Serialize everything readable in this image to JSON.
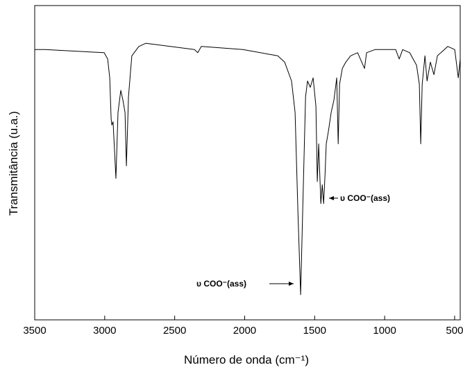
{
  "chart_data": {
    "type": "line",
    "x_label": "Número de onda (cm⁻¹)",
    "y_label": "Transmitância (u.a.)",
    "xlim": [
      3500,
      460
    ],
    "xticks": [
      3500,
      3000,
      2500,
      2000,
      1500,
      1000,
      500
    ],
    "ylim": [
      0,
      100
    ],
    "annotations": [
      "υ COO⁻(ass)",
      "υ COO⁻(ass)"
    ],
    "series": [
      {
        "color": "#000000",
        "x": [
          3500,
          3426,
          3004,
          2979,
          2964,
          2954,
          2949,
          2940,
          2920,
          2905,
          2885,
          2870,
          2855,
          2845,
          2830,
          2806,
          2756,
          2706,
          2359,
          2335,
          2310,
          2012,
          1764,
          1714,
          1665,
          1640,
          1620,
          1600,
          1585,
          1565,
          1551,
          1531,
          1511,
          1491,
          1481,
          1471,
          1456,
          1446,
          1436,
          1426,
          1417,
          1402,
          1382,
          1362,
          1342,
          1332,
          1322,
          1302,
          1278,
          1243,
          1193,
          1144,
          1129,
          1069,
          921,
          896,
          871,
          821,
          772,
          752,
          742,
          732,
          712,
          697,
          673,
          648,
          623,
          549,
          499,
          474,
          460
        ],
        "values": [
          86,
          86,
          85,
          83,
          77,
          64,
          62,
          63,
          45,
          66,
          73,
          70,
          66,
          49,
          71,
          84,
          87,
          88,
          86,
          85,
          87,
          86,
          84,
          82,
          76,
          66,
          35,
          8,
          35,
          71,
          76,
          74,
          77,
          68,
          44,
          56,
          37,
          43,
          37,
          46,
          56,
          60,
          66,
          70,
          77,
          56,
          75,
          80,
          82,
          84,
          85,
          80,
          85,
          86,
          86,
          83,
          86,
          85,
          81,
          75,
          56,
          75,
          84,
          76,
          82,
          78,
          84,
          87,
          86,
          77,
          83
        ]
      }
    ]
  }
}
